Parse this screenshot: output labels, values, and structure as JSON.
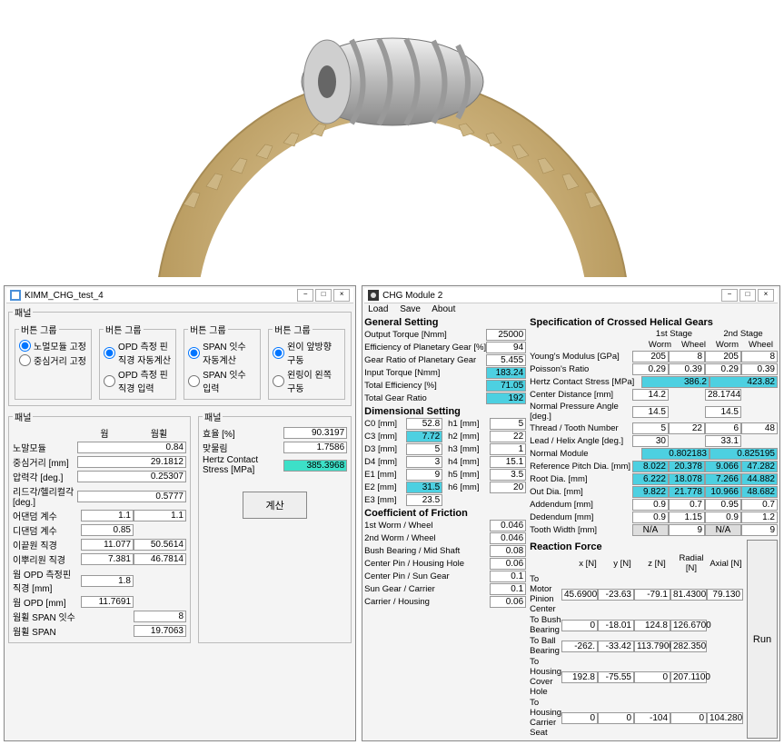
{
  "leftWindow": {
    "title": "KIMM_CHG_test_4",
    "groupTitle": "패널",
    "radioGroups": [
      {
        "title": "버튼 그룹",
        "opts": [
          "노멀모듈 고정",
          "중심거리 고정"
        ],
        "sel": 0
      },
      {
        "title": "버튼 그룹",
        "opts": [
          "OPD 측정 핀 직경 자동계산",
          "OPD 측정 핀 직경 입력"
        ],
        "sel": 0
      },
      {
        "title": "버튼 그룹",
        "opts": [
          "SPAN 잇수 자동계산",
          "SPAN 잇수 입력"
        ],
        "sel": 0
      },
      {
        "title": "버튼 그룹",
        "opts": [
          "왼이 앞방향 구동",
          "왼링이 왼쪽 구동"
        ],
        "sel": 0
      }
    ],
    "left_table_cols": [
      "웜",
      "웜휠"
    ],
    "left_table": [
      [
        "노말모듈",
        "",
        "0.84",
        ""
      ],
      [
        "중심거리 [mm]",
        "",
        "29.1812",
        ""
      ],
      [
        "압력각 [deg.]",
        "",
        "0.25307",
        ""
      ],
      [
        "리드각/헬리컬각 [deg.]",
        "",
        "0.5777",
        ""
      ],
      [
        "어댄덤 계수",
        "1.1",
        "",
        "1.1"
      ],
      [
        "디댄덤 계수",
        "0.85",
        "",
        ""
      ],
      [
        "이끝원 직경",
        "11.077",
        "",
        "50.5614"
      ],
      [
        "이뿌리원 직경",
        "7.381",
        "",
        "46.7814"
      ],
      [
        "웜 OPD 측정핀 직경 [mm]",
        "1.8",
        "",
        ""
      ],
      [
        "웜 OPD [mm]",
        "11.7691",
        "",
        ""
      ],
      [
        "웜휠 SPAN 잇수",
        "",
        "",
        "8"
      ],
      [
        "웜휠 SPAN",
        "",
        "",
        "19.7063"
      ]
    ],
    "right_table": [
      [
        "효율 [%]",
        "90.3197",
        ""
      ],
      [
        "맞물림",
        "1.7586",
        ""
      ],
      [
        "Hertz Contact Stress [MPa]",
        "385.3968",
        "hl2"
      ]
    ],
    "button": "계산"
  },
  "rightWindow": {
    "title": "CHG Module 2",
    "menu": [
      "Load",
      "Save",
      "About"
    ],
    "sections": {
      "general": {
        "title": "General Setting",
        "rows": [
          [
            "Output Torque [Nmm]",
            "25000",
            ""
          ],
          [
            "Efficiency of Planetary Gear [%]",
            "94",
            ""
          ],
          [
            "Gear Ratio of Planetary Gear",
            "5.455",
            ""
          ],
          [
            "Input Torque [Nmm]",
            "183.24",
            "hl"
          ],
          [
            "Total Efficiency [%]",
            "71.05",
            "hl"
          ],
          [
            "Total Gear Ratio",
            "192",
            "hl"
          ]
        ]
      },
      "dim": {
        "title": "Dimensional Setting",
        "pairs": [
          [
            "C0 [mm]",
            "52.8",
            "h1 [mm]",
            "5"
          ],
          [
            "C3 [mm]",
            "7.72",
            "h2 [mm]",
            "22"
          ],
          [
            "D3 [mm]",
            "5",
            "h3 [mm]",
            "1"
          ],
          [
            "D4 [mm]",
            "3",
            "h4 [mm]",
            "15.1"
          ],
          [
            "E1 [mm]",
            "9",
            "h5 [mm]",
            "3.5"
          ],
          [
            "E2 [mm]",
            "31.5",
            "h6 [mm]",
            "20"
          ],
          [
            "E3 [mm]",
            "23.5",
            "",
            ""
          ]
        ],
        "hl": {
          "1-0": true,
          "5-0": true
        }
      },
      "cof": {
        "title": "Coefficient of Friction",
        "rows": [
          [
            "1st Worm / Wheel",
            "0.046"
          ],
          [
            "2nd Worm / Wheel",
            "0.046"
          ],
          [
            "Bush Bearing / Mid Shaft",
            "0.08"
          ],
          [
            "Center Pin / Housing Hole",
            "0.06"
          ],
          [
            "Center Pin / Sun Gear",
            "0.1"
          ],
          [
            "Sun Gear / Carrier",
            "0.1"
          ],
          [
            "Carrier / Housing",
            "0.06"
          ]
        ]
      },
      "spec": {
        "title": "Specification of Crossed Helical Gears",
        "stages": [
          "1st Stage",
          "2nd Stage"
        ],
        "cols": [
          "Worm",
          "Wheel",
          "Worm",
          "Wheel"
        ],
        "rows": [
          [
            "Young's Modulus [GPa]",
            "205",
            "8",
            "205",
            "8",
            ""
          ],
          [
            "Poisson's Ratio",
            "0.29",
            "0.39",
            "0.29",
            "0.39",
            ""
          ],
          [
            "Hertz Contact Stress [MPa]",
            "386.2",
            "",
            "423.82",
            "",
            "hl-w"
          ],
          [
            "Center Distance [mm]",
            "14.2",
            "",
            "28.1744",
            "",
            ""
          ],
          [
            "Normal Pressure Angle [deg.]",
            "14.5",
            "",
            "14.5",
            "",
            ""
          ],
          [
            "Thread / Tooth Number",
            "5",
            "22",
            "6",
            "48",
            ""
          ],
          [
            "Lead / Helix Angle [deg.]",
            "30",
            "",
            "33.1",
            "",
            ""
          ],
          [
            "Normal Module",
            "0.802183",
            "",
            "0.825195",
            "",
            "hl-w"
          ],
          [
            "Reference Pitch Dia. [mm]",
            "8.022",
            "20.378",
            "9.066",
            "47.282",
            "hl"
          ],
          [
            "Root Dia. [mm]",
            "6.222",
            "18.078",
            "7.266",
            "44.882",
            "hl"
          ],
          [
            "Out Dia. [mm]",
            "9.822",
            "21.778",
            "10.966",
            "48.682",
            "hl"
          ],
          [
            "Addendum [mm]",
            "0.9",
            "0.7",
            "0.95",
            "0.7",
            ""
          ],
          [
            "Dedendum [mm]",
            "0.9",
            "1.15",
            "0.9",
            "1.2",
            ""
          ],
          [
            "Tooth Width [mm]",
            "N/A",
            "9",
            "N/A",
            "9",
            "na"
          ]
        ]
      },
      "reac": {
        "title": "Reaction Force",
        "cols": [
          "x [N]",
          "y [N]",
          "z [N]",
          "Radial [N]",
          "Axial [N]"
        ],
        "rows": [
          [
            "To Motor Pinion Center",
            "45.6900",
            "-23.63",
            "-79.1",
            "81.4300",
            "79.130"
          ],
          [
            "To Bush Bearing",
            "0",
            "-18.01",
            "124.8",
            "126.6700",
            ""
          ],
          [
            "To Ball Bearing",
            "-262.",
            "-33.42",
            "113.7900",
            "282.350",
            ""
          ],
          [
            "To Housing Cover Hole",
            "192.8",
            "-75.55",
            "0",
            "207.1100",
            ""
          ],
          [
            "To Housing Carrier Seat",
            "0",
            "0",
            "-104",
            "0",
            "104.280"
          ]
        ]
      }
    },
    "run": "Run"
  }
}
